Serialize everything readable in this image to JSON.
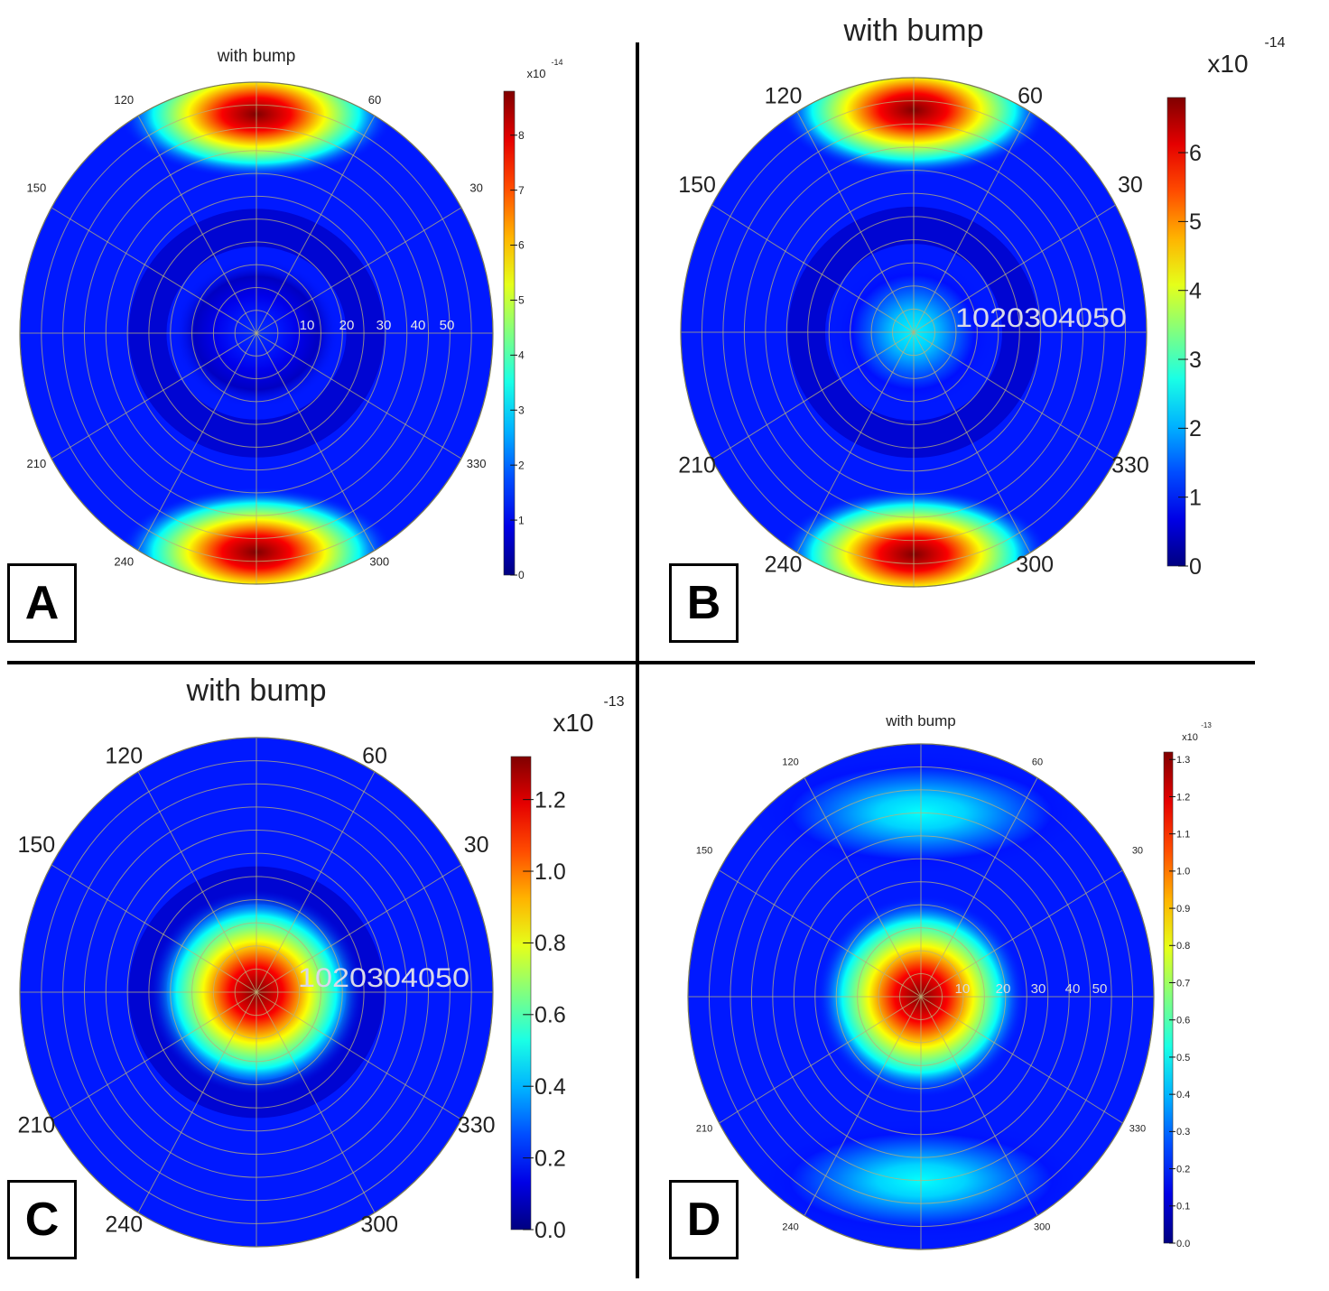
{
  "chart_data": [
    {
      "panel": "A",
      "type": "heatmap",
      "subtype": "polar",
      "title": "with bump",
      "angle_ticks": [
        "30",
        "60",
        "120",
        "150",
        "210",
        "240",
        "300",
        "330"
      ],
      "radial_ticks": [
        "10",
        "20",
        "30",
        "40",
        "50"
      ],
      "colorbar": {
        "exponent_label": "x10",
        "exponent": "-14",
        "ticks": [
          "0",
          "1",
          "2",
          "3",
          "4",
          "5",
          "6",
          "7",
          "8"
        ],
        "range": [
          0,
          8.8
        ]
      },
      "hotspots": [
        {
          "angle_deg": 90,
          "radius": 48,
          "value": 8.8
        },
        {
          "angle_deg": 270,
          "radius": 48,
          "value": 8.8
        },
        {
          "angle_deg": 0,
          "radius": 0,
          "value": 1.5
        }
      ]
    },
    {
      "panel": "B",
      "type": "heatmap",
      "subtype": "polar",
      "title": "with bump",
      "angle_ticks": [
        "30",
        "60",
        "120",
        "150",
        "210",
        "240",
        "300",
        "330"
      ],
      "radial_ticks": [
        "10",
        "20",
        "30",
        "40",
        "50"
      ],
      "radial_tick_text": "1020304050",
      "colorbar": {
        "exponent_label": "x10",
        "exponent": "-14",
        "ticks": [
          "0",
          "1",
          "2",
          "3",
          "4",
          "5",
          "6"
        ],
        "range": [
          0,
          6.8
        ]
      },
      "hotspots": [
        {
          "angle_deg": 90,
          "radius": 48,
          "value": 6.8
        },
        {
          "angle_deg": 270,
          "radius": 48,
          "value": 6.8
        },
        {
          "angle_deg": 0,
          "radius": 0,
          "value": 2.5
        }
      ]
    },
    {
      "panel": "C",
      "type": "heatmap",
      "subtype": "polar",
      "title": "with bump",
      "angle_ticks": [
        "30",
        "60",
        "120",
        "150",
        "210",
        "240",
        "300",
        "330"
      ],
      "radial_ticks": [
        "10",
        "20",
        "30",
        "40",
        "50"
      ],
      "radial_tick_text": "1020304050",
      "colorbar": {
        "exponent_label": "x10",
        "exponent": "-13",
        "ticks": [
          "0.0",
          "0.2",
          "0.4",
          "0.6",
          "0.8",
          "1.0",
          "1.2"
        ],
        "range": [
          0,
          1.32
        ]
      },
      "hotspots": [
        {
          "angle_deg": 0,
          "radius": 0,
          "value": 1.32
        }
      ]
    },
    {
      "panel": "D",
      "type": "heatmap",
      "subtype": "polar",
      "title": "with bump",
      "angle_ticks": [
        "30",
        "60",
        "120",
        "150",
        "210",
        "240",
        "300",
        "330"
      ],
      "radial_ticks": [
        "10",
        "20",
        "30",
        "40",
        "50"
      ],
      "colorbar": {
        "exponent_label": "x10",
        "exponent": "-13",
        "ticks": [
          "0.0",
          "0.1",
          "0.2",
          "0.3",
          "0.4",
          "0.5",
          "0.6",
          "0.7",
          "0.8",
          "0.9",
          "1.0",
          "1.1",
          "1.2",
          "1.3"
        ],
        "range": [
          0,
          1.32
        ]
      },
      "hotspots": [
        {
          "angle_deg": 0,
          "radius": 0,
          "value": 1.32
        },
        {
          "angle_deg": 90,
          "radius": 40,
          "value": 0.5
        },
        {
          "angle_deg": 270,
          "radius": 40,
          "value": 0.5
        }
      ]
    }
  ],
  "panel_labels": [
    "A",
    "B",
    "C",
    "D"
  ]
}
